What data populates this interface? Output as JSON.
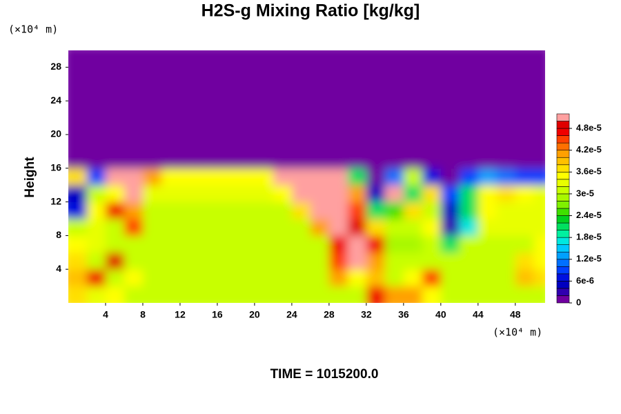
{
  "chart_data": {
    "type": "heatmap",
    "title": "H2S-g Mixing Ratio [kg/kg]",
    "y_label": "Height",
    "y_unit": "(×10⁴ m)",
    "x_unit": "(×10⁴ m)",
    "footer": "TIME = 1015200.0",
    "xlim": [
      0,
      51.2
    ],
    "ylim": [
      0,
      30
    ],
    "xticks": [
      4,
      8,
      12,
      16,
      20,
      24,
      28,
      32,
      36,
      40,
      44,
      48
    ],
    "yticks": [
      4,
      8,
      12,
      16,
      20,
      24,
      28
    ],
    "x": [
      0,
      2,
      4,
      6,
      8,
      10,
      12,
      14,
      16,
      18,
      20,
      22,
      24,
      26,
      28,
      30,
      32,
      34,
      36,
      38,
      40,
      42,
      44,
      46,
      48,
      50
    ],
    "y": [
      0,
      2,
      4,
      6,
      8,
      10,
      12,
      14,
      16,
      18,
      20,
      22,
      24,
      26,
      28
    ],
    "z": [
      [
        3.6e-05,
        3.2e-05,
        3.4e-05,
        3e-05,
        3e-05,
        3e-05,
        3e-05,
        3e-05,
        3e-05,
        3e-05,
        3e-05,
        3e-05,
        3e-05,
        3e-05,
        3e-05,
        3e-05,
        4.6e-05,
        4e-05,
        4e-05,
        3.4e-05,
        3e-05,
        3e-05,
        3e-05,
        3e-05,
        3e-05,
        3e-05
      ],
      [
        3.8e-05,
        4.6e-05,
        3e-05,
        3.4e-05,
        3e-05,
        3e-05,
        3e-05,
        3e-05,
        3e-05,
        3e-05,
        3e-05,
        3e-05,
        3e-05,
        3e-05,
        4e-05,
        3.4e-05,
        3.8e-05,
        3e-05,
        3.4e-05,
        4.4e-05,
        3e-05,
        3e-05,
        3e-05,
        3e-05,
        3.8e-05,
        3.6e-05
      ],
      [
        3.6e-05,
        3e-05,
        4.8e-05,
        3e-05,
        3e-05,
        3e-05,
        3e-05,
        3e-05,
        3e-05,
        3e-05,
        3e-05,
        3e-05,
        3e-05,
        3e-05,
        4.4e-05,
        5e-05,
        4e-05,
        3e-05,
        3e-05,
        3e-05,
        3e-05,
        3e-05,
        3e-05,
        3e-05,
        3.6e-05,
        3.4e-05
      ],
      [
        3.4e-05,
        3.2e-05,
        3e-05,
        3e-05,
        3e-05,
        3e-05,
        3e-05,
        3e-05,
        3e-05,
        3e-05,
        3e-05,
        3e-05,
        3e-05,
        3e-05,
        4.6e-05,
        5.2e-05,
        4.6e-05,
        2.8e-05,
        2.8e-05,
        3e-05,
        2e-05,
        3e-05,
        3e-05,
        3e-05,
        3e-05,
        3.4e-05
      ],
      [
        3e-05,
        3.2e-05,
        3e-05,
        4.4e-05,
        3e-05,
        3e-05,
        3e-05,
        3e-05,
        3e-05,
        3e-05,
        3e-05,
        3e-05,
        3e-05,
        4e-05,
        5e-05,
        4.8e-05,
        3.6e-05,
        3e-05,
        3e-05,
        3.4e-05,
        2e-06,
        1.6e-05,
        3.2e-05,
        3.2e-05,
        3.2e-05,
        3.2e-05
      ],
      [
        6e-06,
        3.4e-05,
        4.6e-05,
        4e-05,
        3e-05,
        3e-05,
        3e-05,
        3e-05,
        3e-05,
        3e-05,
        3e-05,
        3e-05,
        3.6e-05,
        5.2e-05,
        5.2e-05,
        4.4e-05,
        2e-05,
        2.4e-05,
        3.6e-05,
        3e-05,
        4e-06,
        2e-05,
        3.4e-05,
        3.2e-05,
        3.2e-05,
        3.2e-05
      ],
      [
        4e-06,
        3e-05,
        3.4e-05,
        5.2e-05,
        3.3e-05,
        3.3e-05,
        3.3e-05,
        3.3e-05,
        3.3e-05,
        3.3e-05,
        3.3e-05,
        3.4e-05,
        5.2e-05,
        5.2e-05,
        5.2e-05,
        4e-05,
        4e-06,
        5e-05,
        2e-05,
        3.6e-05,
        8e-06,
        2e-05,
        3.4e-05,
        3.6e-05,
        3.4e-05,
        3.3e-05
      ],
      [
        3.6e-05,
        8e-06,
        5.2e-05,
        5.2e-05,
        4e-05,
        3.4e-05,
        3.4e-05,
        3.4e-05,
        3.4e-05,
        3.4e-05,
        3.4e-05,
        5.2e-05,
        5.2e-05,
        5.2e-05,
        5.2e-05,
        2e-05,
        0,
        1e-05,
        3e-05,
        6e-06,
        0,
        8e-06,
        1.2e-05,
        1e-05,
        8e-06,
        8e-06
      ],
      [
        0,
        0,
        0,
        0,
        0,
        0,
        0,
        0,
        0,
        0,
        0,
        0,
        0,
        0,
        0,
        0,
        0,
        0,
        0,
        0,
        0,
        0,
        0,
        0,
        0,
        0
      ],
      [
        0,
        0,
        0,
        0,
        0,
        0,
        0,
        0,
        0,
        0,
        0,
        0,
        0,
        0,
        0,
        0,
        0,
        0,
        0,
        0,
        0,
        0,
        0,
        0,
        0,
        0
      ],
      [
        0,
        0,
        0,
        0,
        0,
        0,
        0,
        0,
        0,
        0,
        0,
        0,
        0,
        0,
        0,
        0,
        0,
        0,
        0,
        0,
        0,
        0,
        0,
        0,
        0,
        0
      ],
      [
        0,
        0,
        0,
        0,
        0,
        0,
        0,
        0,
        0,
        0,
        0,
        0,
        0,
        0,
        0,
        0,
        0,
        0,
        0,
        0,
        0,
        0,
        0,
        0,
        0,
        0
      ],
      [
        0,
        0,
        0,
        0,
        0,
        0,
        0,
        0,
        0,
        0,
        0,
        0,
        0,
        0,
        0,
        0,
        0,
        0,
        0,
        0,
        0,
        0,
        0,
        0,
        0,
        0
      ],
      [
        0,
        0,
        0,
        0,
        0,
        0,
        0,
        0,
        0,
        0,
        0,
        0,
        0,
        0,
        0,
        0,
        0,
        0,
        0,
        0,
        0,
        0,
        0,
        0,
        0,
        0
      ],
      [
        0,
        0,
        0,
        0,
        0,
        0,
        0,
        0,
        0,
        0,
        0,
        0,
        0,
        0,
        0,
        0,
        0,
        0,
        0,
        0,
        0,
        0,
        0,
        0,
        0,
        0
      ]
    ],
    "clim": [
      0,
      5.2e-05
    ],
    "colormap": [
      "#7000a0",
      "#3000b0",
      "#0000c0",
      "#0010e0",
      "#0040ff",
      "#0070ff",
      "#00a0ff",
      "#00c8ff",
      "#00e8e0",
      "#00f0a0",
      "#00e060",
      "#00d020",
      "#40e000",
      "#80f000",
      "#a8f800",
      "#c8ff00",
      "#e8ff00",
      "#ffff00",
      "#ffe000",
      "#ffc000",
      "#ffa000",
      "#ff7000",
      "#ff4000",
      "#f00000",
      "#e00000",
      "#ffa0a0"
    ],
    "cticks": [
      0,
      {
        "value": 6e-06,
        "label": "6e-6"
      },
      {
        "value": 1.2e-05,
        "label": "1.2e-5"
      },
      {
        "value": 1.8e-05,
        "label": "1.8e-5"
      },
      {
        "value": 2.4e-05,
        "label": "2.4e-5"
      },
      {
        "value": 3e-05,
        "label": "3e-5"
      },
      {
        "value": 3.6e-05,
        "label": "3.6e-5"
      },
      {
        "value": 4.2e-05,
        "label": "4.2e-5"
      },
      {
        "value": 4.8e-05,
        "label": "4.8e-5"
      }
    ]
  }
}
